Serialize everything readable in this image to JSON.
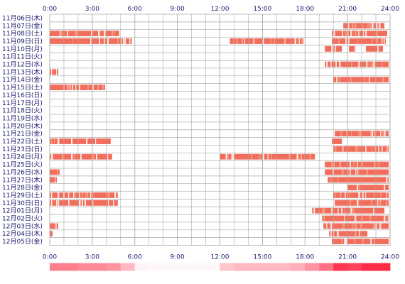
{
  "chart_data": {
    "type": "heatmap",
    "title": "",
    "xlabel": "",
    "ylabel": "",
    "xlim": [
      0,
      24
    ],
    "grid": true,
    "x_ticks": [
      "0:00",
      "3:00",
      "6:00",
      "9:00",
      "12:00",
      "15:00",
      "18:00",
      "21:00",
      "24:00"
    ],
    "colors": {
      "bar": "#f26d5b",
      "bar_light": "#f6a48a",
      "grid": "#aaaaaa",
      "text": "#1a1a6e",
      "background": "#ffffff"
    },
    "rows": [
      {
        "label": "11月06日(木)",
        "spans": []
      },
      {
        "label": "11月07日(金)",
        "spans": [
          [
            20.7,
            23.6
          ]
        ]
      },
      {
        "label": "11月08日(土)",
        "spans": [
          [
            0.0,
            4.9
          ],
          [
            19.9,
            23.8
          ]
        ]
      },
      {
        "label": "11月09日(日)",
        "spans": [
          [
            0.0,
            5.8
          ],
          [
            12.7,
            17.9
          ],
          [
            19.9,
            23.7
          ]
        ]
      },
      {
        "label": "11月10日(月)",
        "spans": [
          [
            19.4,
            20.6
          ],
          [
            21.1,
            21.6
          ],
          [
            22.3,
            23.5
          ]
        ]
      },
      {
        "label": "11月11日(火)",
        "spans": []
      },
      {
        "label": "11月12日(水)",
        "spans": [
          [
            19.4,
            23.9
          ]
        ]
      },
      {
        "label": "11月13日(木)",
        "spans": [
          [
            0.0,
            0.6
          ]
        ]
      },
      {
        "label": "11月14日(金)",
        "spans": [
          [
            20.0,
            23.9
          ]
        ]
      },
      {
        "label": "11月15日(土)",
        "spans": [
          [
            0.0,
            3.9
          ]
        ]
      },
      {
        "label": "11月16日(日)",
        "spans": []
      },
      {
        "label": "11月17日(月)",
        "spans": []
      },
      {
        "label": "11月18日(火)",
        "spans": []
      },
      {
        "label": "11月19日(水)",
        "spans": []
      },
      {
        "label": "11月20日(木)",
        "spans": []
      },
      {
        "label": "11月21日(金)",
        "spans": [
          [
            20.1,
            23.9
          ]
        ]
      },
      {
        "label": "11月22日(土)",
        "spans": [
          [
            0.0,
            4.3
          ],
          [
            19.9,
            20.6
          ]
        ]
      },
      {
        "label": "11月23日(日)",
        "spans": [
          [
            20.0,
            23.9
          ]
        ]
      },
      {
        "label": "11月24日(月)",
        "spans": [
          [
            0.0,
            4.4
          ],
          [
            12.0,
            18.7
          ]
        ]
      },
      {
        "label": "11月25日(火)",
        "spans": [
          [
            19.4,
            23.9
          ]
        ]
      },
      {
        "label": "11月26日(水)",
        "spans": [
          [
            0.0,
            0.7
          ],
          [
            19.4,
            23.9
          ]
        ]
      },
      {
        "label": "11月27日(木)",
        "spans": [
          [
            0.0,
            0.5
          ],
          [
            19.6,
            23.9
          ]
        ]
      },
      {
        "label": "11月28日(金)",
        "spans": [
          [
            21.0,
            23.9
          ]
        ]
      },
      {
        "label": "11月29日(土)",
        "spans": [
          [
            0.0,
            4.8
          ],
          [
            20.0,
            23.9
          ]
        ]
      },
      {
        "label": "11月30日(日)",
        "spans": [
          [
            0.0,
            4.8
          ],
          [
            20.1,
            23.9
          ]
        ]
      },
      {
        "label": "12月01日(月)",
        "spans": [
          [
            18.5,
            23.6
          ]
        ]
      },
      {
        "label": "12月02日(火)",
        "spans": [
          [
            19.2,
            23.9
          ]
        ]
      },
      {
        "label": "12月03日(水)",
        "spans": [
          [
            0.0,
            0.6
          ],
          [
            19.3,
            23.9
          ]
        ]
      },
      {
        "label": "12月04日(木)",
        "spans": [
          [
            0.0,
            0.2
          ],
          [
            19.7,
            22.4
          ]
        ]
      },
      {
        "label": "12月05日(金)",
        "spans": [
          [
            19.9,
            23.9
          ]
        ]
      }
    ],
    "summary_intensity": [
      0.55,
      0.55,
      0.5,
      0.5,
      0.45,
      0.3,
      0.05,
      0.03,
      0.03,
      0.03,
      0.03,
      0.03,
      0.25,
      0.3,
      0.3,
      0.3,
      0.3,
      0.35,
      0.45,
      0.6,
      0.85,
      0.8,
      0.9,
      0.9
    ]
  }
}
